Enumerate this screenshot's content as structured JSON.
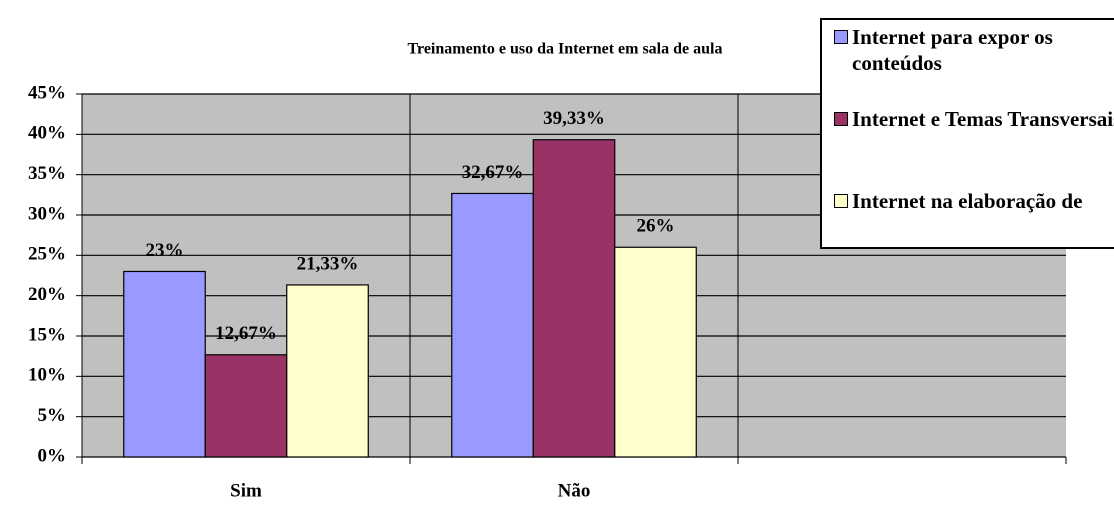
{
  "chart_data": {
    "type": "bar",
    "title": "Treinamento e uso da Internet em sala de aula",
    "categories": [
      "Sim",
      "Não",
      null
    ],
    "series": [
      {
        "name": "Internet para expor os conteúdos",
        "color": "#9999ff",
        "values": [
          23,
          32.67,
          null
        ],
        "value_labels": [
          "23%",
          "32,67%",
          null
        ]
      },
      {
        "name": "Internet e Temas Transversais",
        "color": "#993366",
        "values": [
          12.67,
          39.33,
          null
        ],
        "value_labels": [
          "12,67%",
          "39,33%",
          null
        ]
      },
      {
        "name": "Internet na elaboração de",
        "color": "#ffffcc",
        "values": [
          21.33,
          26,
          null
        ],
        "value_labels": [
          "21,33%",
          "26%",
          null
        ]
      }
    ],
    "ylim": [
      0,
      45
    ],
    "yticks": [
      {
        "value": 0,
        "label": "0%"
      },
      {
        "value": 5,
        "label": "5%"
      },
      {
        "value": 10,
        "label": "10%"
      },
      {
        "value": 15,
        "label": "15%"
      },
      {
        "value": 20,
        "label": "20%"
      },
      {
        "value": 25,
        "label": "25%"
      },
      {
        "value": 30,
        "label": "30%"
      },
      {
        "value": 35,
        "label": "35%"
      },
      {
        "value": 40,
        "label": "40%"
      },
      {
        "value": 45,
        "label": "45%"
      }
    ],
    "grid": true,
    "plot_background": "#c0c0c0"
  }
}
